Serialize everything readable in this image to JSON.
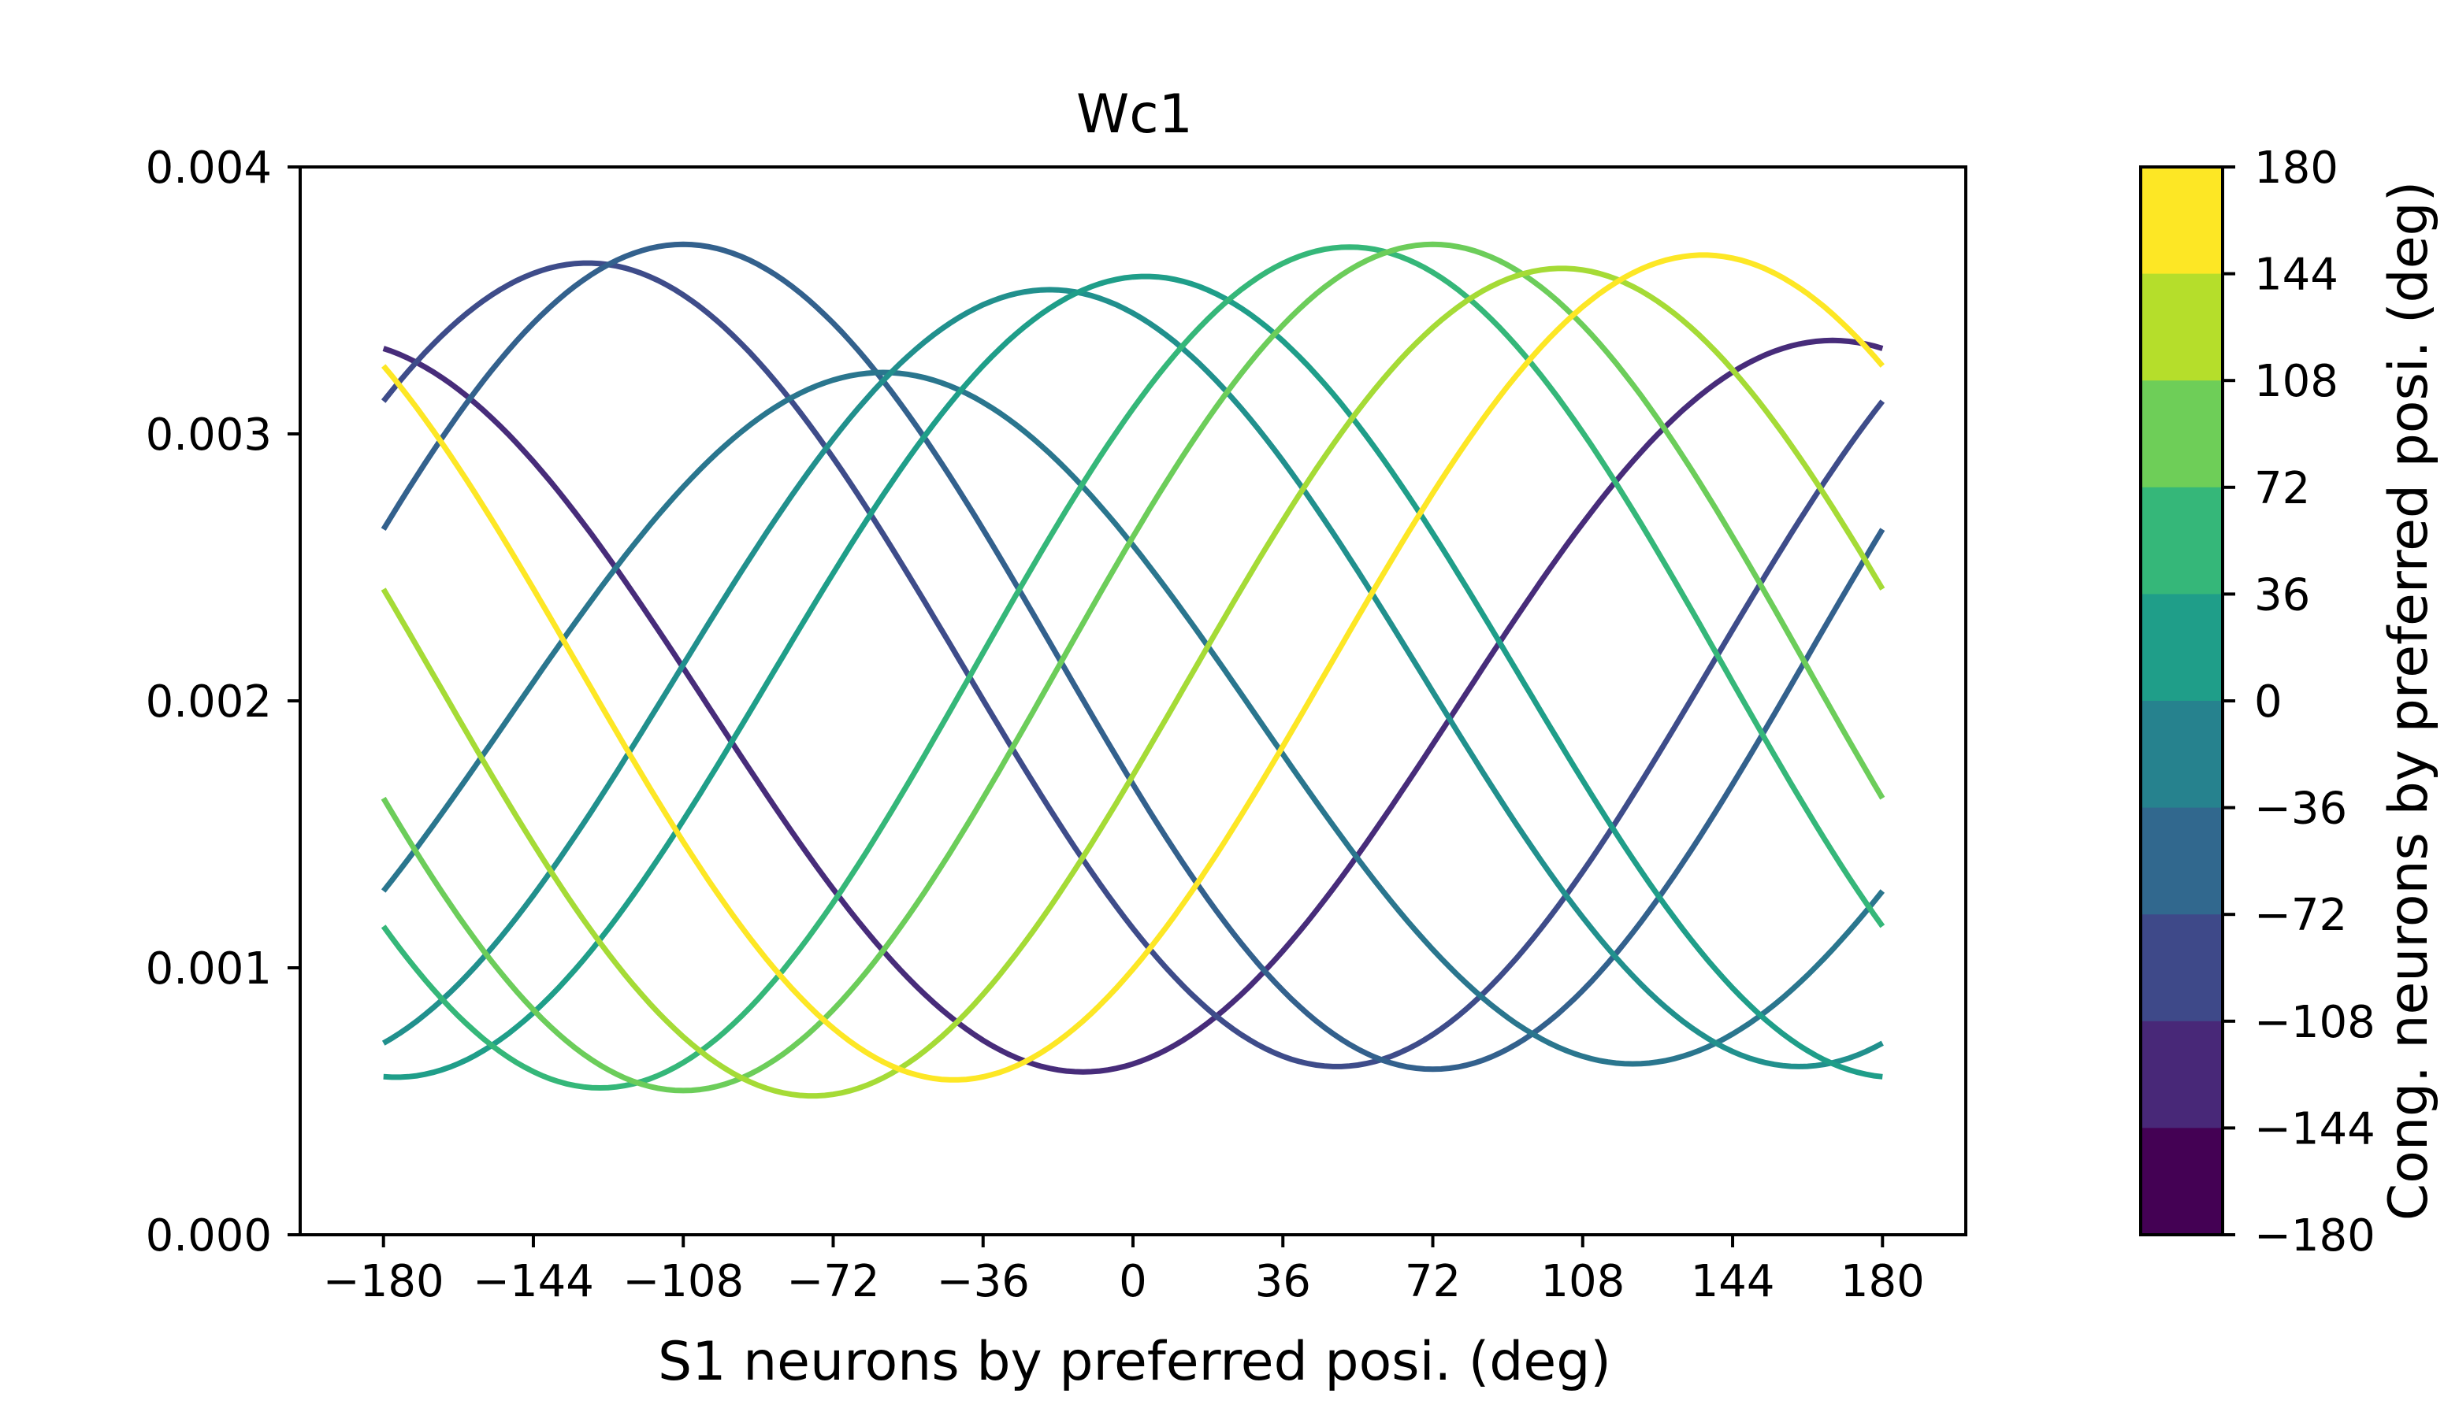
{
  "chart_data": {
    "type": "line",
    "title": "Wc1",
    "xlabel": "S1 neurons by preferred posi. (deg)",
    "ylabel": "",
    "xlim": [
      -200,
      200
    ],
    "ylim": [
      0,
      0.004
    ],
    "x_ticks": [
      -180,
      -144,
      -108,
      -72,
      -36,
      0,
      36,
      72,
      108,
      144,
      180
    ],
    "x_tick_labels": [
      "−180",
      "−144",
      "−108",
      "−72",
      "−36",
      "0",
      "36",
      "72",
      "108",
      "144",
      "180"
    ],
    "y_ticks": [
      0,
      0.001,
      0.002,
      0.003,
      0.004
    ],
    "y_tick_labels": [
      "0.000",
      "0.001",
      "0.002",
      "0.003",
      "0.004"
    ],
    "x_range": [
      -180,
      180
    ],
    "grid": false,
    "series": [
      {
        "color": "#472c7a",
        "peak_x": 168,
        "peak_y": 0.00335,
        "min_y": 0.00061
      },
      {
        "color": "#3e4c8a",
        "peak_x": -131,
        "peak_y": 0.00364,
        "min_y": 0.00063
      },
      {
        "color": "#33618d",
        "peak_x": -108,
        "peak_y": 0.00371,
        "min_y": 0.00062
      },
      {
        "color": "#2a768e",
        "peak_x": -60,
        "peak_y": 0.00323,
        "min_y": 0.00064
      },
      {
        "color": "#21908d",
        "peak_x": -20,
        "peak_y": 0.00354,
        "min_y": 0.00063
      },
      {
        "color": "#1f9e89",
        "peak_x": 3,
        "peak_y": 0.00359,
        "min_y": 0.00059
      },
      {
        "color": "#35b779",
        "peak_x": 52,
        "peak_y": 0.0037,
        "min_y": 0.00055
      },
      {
        "color": "#6ccd5a",
        "peak_x": 72,
        "peak_y": 0.00371,
        "min_y": 0.00054
      },
      {
        "color": "#a5db36",
        "peak_x": 103,
        "peak_y": 0.00362,
        "min_y": 0.00052
      },
      {
        "color": "#fde725",
        "peak_x": 137,
        "peak_y": 0.00367,
        "min_y": 0.00058
      }
    ],
    "colorbar": {
      "label": "Cong. neurons by preferred posi. (deg)",
      "ticks": [
        "180",
        "144",
        "108",
        "72",
        "36",
        "0",
        "−36",
        "−72",
        "−108",
        "−144",
        "−180"
      ],
      "colors": [
        "#fde725",
        "#b5de2b",
        "#6ece58",
        "#35b779",
        "#1f9e89",
        "#26828e",
        "#31688e",
        "#3e4989",
        "#482878",
        "#440154"
      ]
    }
  }
}
